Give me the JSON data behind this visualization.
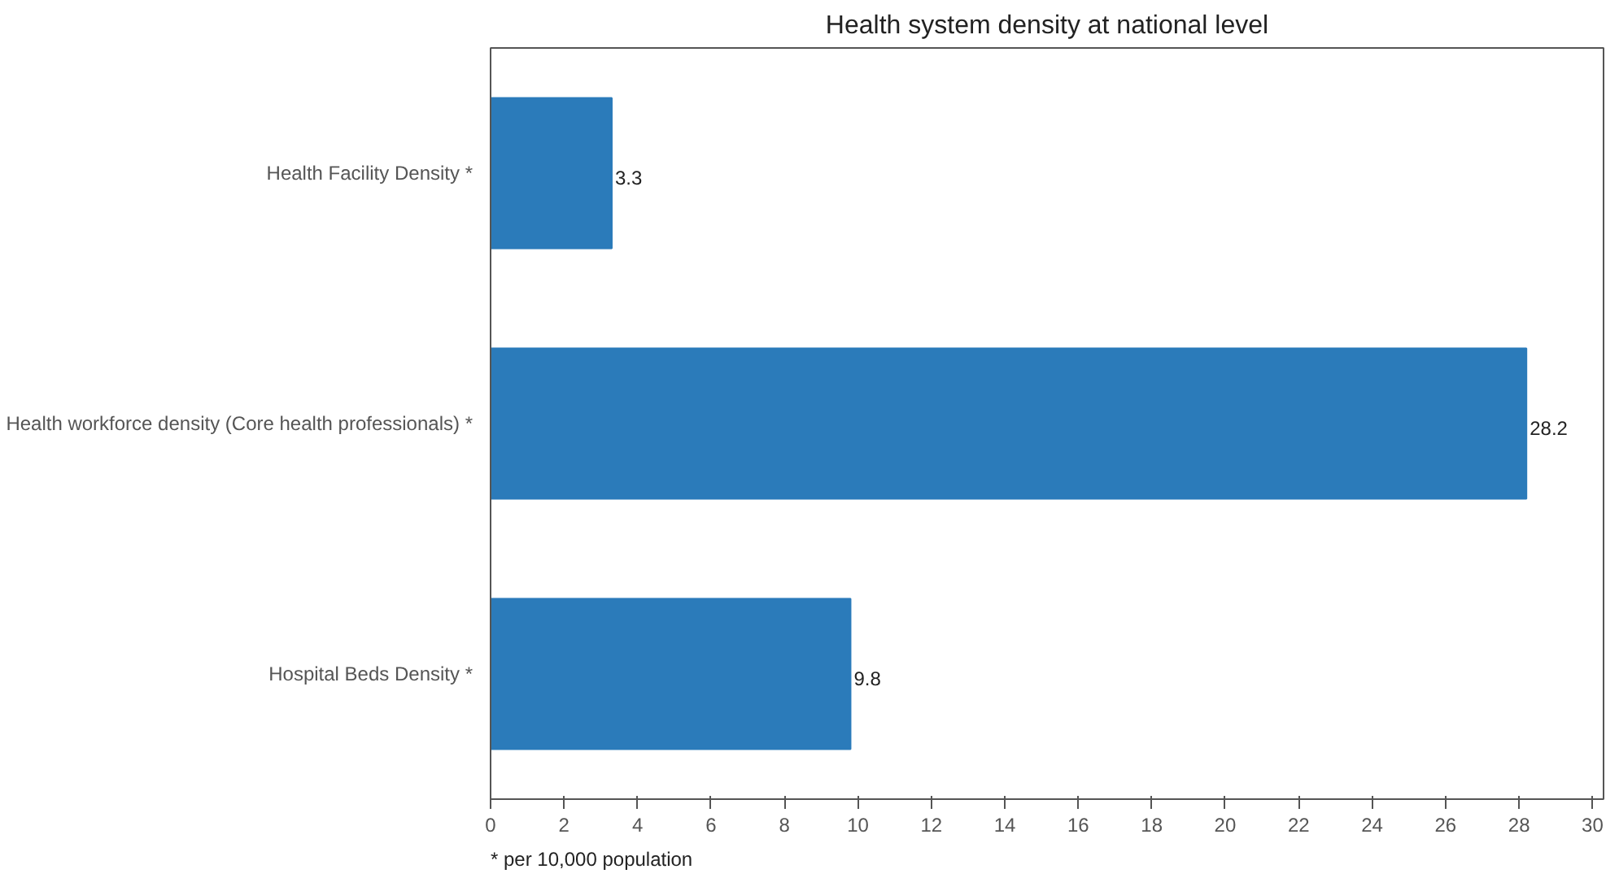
{
  "chart_data": {
    "type": "bar",
    "orientation": "horizontal",
    "title": "Health system density at national level",
    "categories": [
      "Health Facility Density *",
      "Health workforce density (Core health professionals) *",
      "Hospital Beds Density *"
    ],
    "values": [
      3.3,
      28.2,
      9.8
    ],
    "color": "#2b7bba",
    "data_labels": true,
    "xlim": [
      0,
      30.3
    ],
    "xticks": [
      0,
      2,
      4,
      6,
      8,
      10,
      12,
      14,
      16,
      18,
      20,
      22,
      24,
      26,
      28,
      30
    ],
    "grid": false,
    "annotations": [
      "* per 10,000 population"
    ]
  }
}
